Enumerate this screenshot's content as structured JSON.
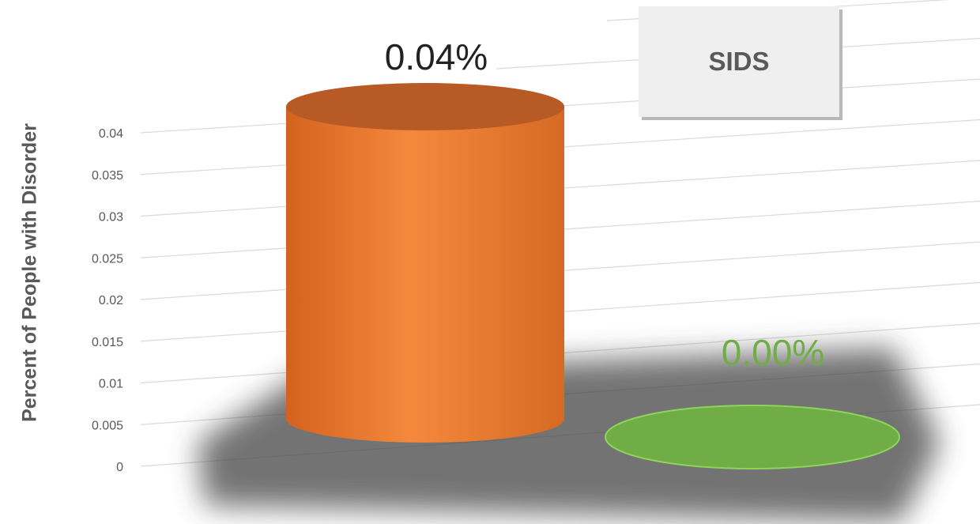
{
  "chart_data": {
    "type": "bar",
    "style": "3d-cylinder",
    "title": "SIDS",
    "ylabel": "Percent of People with Disorder",
    "ylim": [
      0,
      0.04
    ],
    "y_ticks": [
      "0",
      "0.005",
      "0.01",
      "0.015",
      "0.02",
      "0.025",
      "0.03",
      "0.035",
      "0.04"
    ],
    "grid": true,
    "categories": [
      "",
      ""
    ],
    "series": [
      {
        "values": [
          0.04,
          0.0
        ],
        "data_labels": [
          "0.04%",
          "0.00%"
        ],
        "colors": [
          "#ed7d31",
          "#70ad47"
        ],
        "label_colors": [
          "#222222",
          "#70ad47"
        ]
      }
    ]
  }
}
